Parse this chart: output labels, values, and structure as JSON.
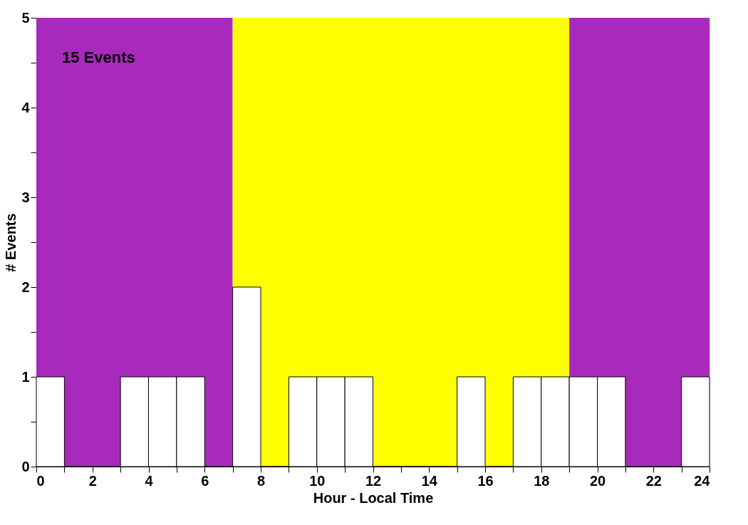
{
  "chart_data": {
    "type": "histogram",
    "xlabel": "Hour - Local Time",
    "ylabel": "# Events",
    "annotations": [
      "15 Events"
    ],
    "bins": [
      0,
      1,
      2,
      3,
      4,
      5,
      6,
      7,
      8,
      9,
      10,
      11,
      12,
      13,
      14,
      15,
      16,
      17,
      18,
      19,
      20,
      21,
      22,
      23,
      24
    ],
    "values": [
      1,
      0,
      0,
      1,
      1,
      1,
      0,
      2,
      0,
      1,
      1,
      1,
      0,
      0,
      0,
      1,
      0,
      1,
      1,
      1,
      1,
      0,
      0,
      1
    ],
    "color": "#ffffff",
    "xlim": [
      0,
      24
    ],
    "xticks": [
      0,
      {
        "value": 1,
        "label": null
      },
      2,
      {
        "value": 3,
        "label": null
      },
      4,
      {
        "value": 5,
        "label": null
      },
      6,
      {
        "value": 7,
        "label": null
      },
      8,
      {
        "value": 9,
        "label": null
      },
      10,
      {
        "value": 11,
        "label": null
      },
      12,
      {
        "value": 13,
        "label": null
      },
      14,
      {
        "value": 15,
        "label": null
      },
      16,
      {
        "value": 17,
        "label": null
      },
      18,
      {
        "value": 19,
        "label": null
      },
      20,
      {
        "value": 21,
        "label": null
      },
      22,
      {
        "value": 23,
        "label": null
      },
      24
    ],
    "ylim": [
      0,
      5
    ],
    "yticks": [
      0,
      {
        "value": 0.5,
        "label": null
      },
      1,
      {
        "value": 1.5,
        "label": null
      },
      2,
      {
        "value": 2.5,
        "label": null
      },
      3,
      {
        "value": 3.5,
        "label": null
      },
      4,
      {
        "value": 4.5,
        "label": null
      },
      5
    ],
    "bands": [
      {
        "axis": "x",
        "from": 0,
        "to": 7,
        "color": "#a82abc"
      },
      {
        "axis": "x",
        "from": 7,
        "to": 19,
        "color": "#ffff00"
      },
      {
        "axis": "x",
        "from": 19,
        "to": 24,
        "color": "#a82abc"
      }
    ],
    "grid": false
  }
}
